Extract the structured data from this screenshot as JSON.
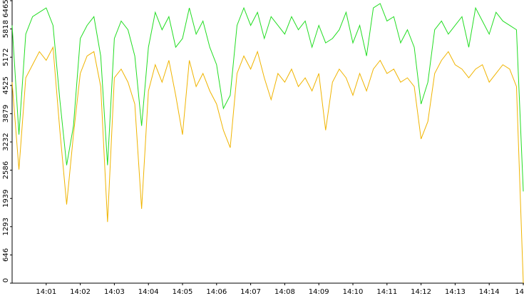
{
  "chart_data": {
    "type": "line",
    "x": [
      0,
      0.2,
      0.4,
      0.6,
      0.8,
      1.0,
      1.2,
      1.4,
      1.6,
      1.8,
      2.0,
      2.2,
      2.4,
      2.6,
      2.8,
      3.0,
      3.2,
      3.4,
      3.6,
      3.8,
      4.0,
      4.2,
      4.4,
      4.6,
      4.8,
      5.0,
      5.2,
      5.4,
      5.6,
      5.8,
      6.0,
      6.2,
      6.4,
      6.6,
      6.8,
      7.0,
      7.2,
      7.4,
      7.6,
      7.8,
      8.0,
      8.2,
      8.4,
      8.6,
      8.8,
      9.0,
      9.2,
      9.4,
      9.6,
      9.8,
      10.0,
      10.2,
      10.4,
      10.6,
      10.8,
      11.0,
      11.2,
      11.4,
      11.6,
      11.8,
      12.0,
      12.2,
      12.4,
      12.6,
      12.8,
      13.0,
      13.2,
      13.4,
      13.6,
      13.8,
      14.0,
      14.2,
      14.4,
      14.6,
      14.8,
      15.0
    ],
    "series": [
      {
        "color": "#22dd22",
        "values": [
          5900,
          3400,
          5700,
          6100,
          6200,
          6300,
          5900,
          4200,
          2700,
          3600,
          5600,
          5900,
          6100,
          5200,
          2700,
          5600,
          6000,
          5800,
          5200,
          3600,
          5400,
          6200,
          5800,
          6100,
          5400,
          5600,
          6300,
          5700,
          6000,
          5400,
          5000,
          4000,
          4300,
          5900,
          6300,
          5900,
          6200,
          5600,
          6100,
          5900,
          5700,
          6100,
          5800,
          6000,
          5400,
          5900,
          5500,
          5600,
          5800,
          6200,
          5500,
          5900,
          5200,
          6300,
          6400,
          6000,
          6100,
          5500,
          5800,
          5400,
          4100,
          4600,
          5800,
          6000,
          5700,
          5900,
          6100,
          5400,
          6300,
          6000,
          5700,
          6200,
          6000,
          5900,
          5800,
          2100
        ]
      },
      {
        "color": "#f0b400",
        "values": [
          4600,
          2600,
          4700,
          5000,
          5300,
          5100,
          5400,
          3500,
          1800,
          3400,
          4800,
          5200,
          5300,
          4500,
          1400,
          4700,
          4900,
          4600,
          4100,
          1700,
          4400,
          5000,
          4600,
          5100,
          4300,
          3400,
          5100,
          4500,
          4800,
          4400,
          4100,
          3500,
          3100,
          4800,
          5200,
          4900,
          5300,
          4700,
          4200,
          4800,
          4600,
          4900,
          4500,
          4700,
          4400,
          4800,
          3500,
          4600,
          4900,
          4700,
          4300,
          4800,
          4400,
          4900,
          5100,
          4800,
          4900,
          4600,
          4700,
          4500,
          3300,
          3700,
          4800,
          5100,
          5300,
          5000,
          4900,
          4700,
          4900,
          5000,
          4600,
          4800,
          5000,
          4900,
          4500,
          0
        ]
      }
    ],
    "xlim": [
      0,
      15
    ],
    "xticks": [
      {
        "value": 1,
        "label": "14:01"
      },
      {
        "value": 2,
        "label": "14:02"
      },
      {
        "value": 3,
        "label": "14:03"
      },
      {
        "value": 4,
        "label": "14:04"
      },
      {
        "value": 5,
        "label": "14:05"
      },
      {
        "value": 6,
        "label": "14:06"
      },
      {
        "value": 7,
        "label": "14:07"
      },
      {
        "value": 8,
        "label": "14:08"
      },
      {
        "value": 9,
        "label": "14:09"
      },
      {
        "value": 10,
        "label": "14:10"
      },
      {
        "value": 11,
        "label": "14:11"
      },
      {
        "value": 12,
        "label": "14:12"
      },
      {
        "value": 13,
        "label": "14:13"
      },
      {
        "value": 14,
        "label": "14:14"
      },
      {
        "value": 15,
        "label": "14"
      }
    ],
    "ylim": [
      0,
      6465
    ],
    "yticks": [
      0,
      646,
      1293,
      1939,
      2586,
      3232,
      3879,
      4525,
      5172,
      5818,
      6465
    ]
  }
}
